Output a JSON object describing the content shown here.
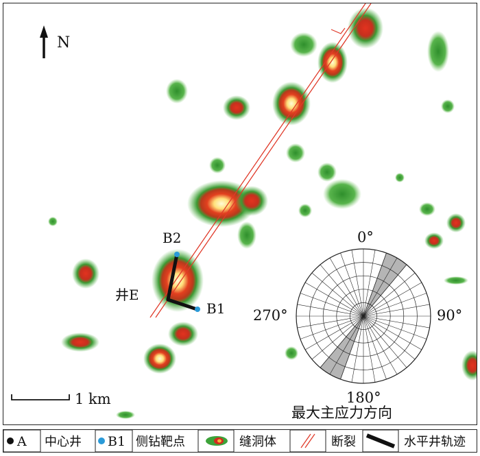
{
  "map": {
    "north_label": "N",
    "scale_label": "1 km",
    "well_label": "井E",
    "target_labels": {
      "b1": "B1",
      "b2": "B2"
    }
  },
  "rose": {
    "title": "最大主应力方向",
    "labels": {
      "north": "0°",
      "east": "90°",
      "south": "180°",
      "west": "270°"
    },
    "stress_azimuth_deg": [
      20,
      40
    ]
  },
  "legend": {
    "items": [
      {
        "marker_text": "A",
        "label": "中心井",
        "icon": "black-dot"
      },
      {
        "marker_text": "B1",
        "label": "侧钻靶点",
        "icon": "blue-dot"
      },
      {
        "label": "缝洞体",
        "icon": "cavity-blob"
      },
      {
        "label": "断裂",
        "icon": "fault-lines"
      },
      {
        "label": "水平井轨迹",
        "icon": "horizontal-well-track"
      }
    ]
  },
  "colors": {
    "cavity_outer": "#3da33a",
    "cavity_mid": "#f2b63b",
    "cavity_core": "#d42a1f",
    "cavity_hot": "#fff3b0",
    "fault": "#e03a2a",
    "target_point": "#2a9ad8",
    "well_track": "#111111",
    "rose_sector": "#b5b5b5"
  }
}
